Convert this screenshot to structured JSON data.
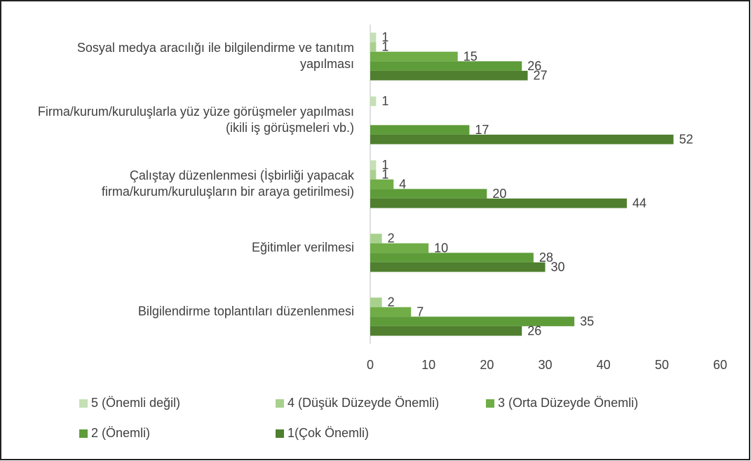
{
  "chart_data": {
    "type": "barh",
    "categories": [
      "Sosyal medya aracılığı ile bilgilendirme ve tanıtım yapılması",
      "Firma/kurum/kuruluşlarla yüz yüze görüşmeler yapılması (ikili iş görüşmeleri vb.)",
      "Çalıştay düzenlenmesi (İşbirliği yapacak firma/kurum/kuruluşların bir araya getirilmesi)",
      "Eğitimler verilmesi",
      "Bilgilendirme toplantıları düzenlenmesi"
    ],
    "series": [
      {
        "name": "5 (Önemli değil)",
        "color": "#c5e0b4",
        "values": [
          1,
          1,
          1,
          null,
          null
        ]
      },
      {
        "name": "4 (Düşük Düzeyde Önemli)",
        "color": "#a9d18e",
        "values": [
          1,
          null,
          1,
          2,
          2
        ]
      },
      {
        "name": "3 (Orta Düzeyde Önemli)",
        "color": "#70ad47",
        "values": [
          15,
          null,
          4,
          10,
          7
        ]
      },
      {
        "name": "2 (Önemli)",
        "color": "#5e9c3a",
        "values": [
          26,
          17,
          20,
          28,
          35
        ]
      },
      {
        "name": "1(Çok Önemli)",
        "color": "#4f7f2f",
        "values": [
          27,
          52,
          44,
          30,
          26
        ]
      }
    ],
    "xlim": [
      0,
      60
    ],
    "xticks": [
      0,
      10,
      20,
      30,
      40,
      50,
      60
    ],
    "grid": false
  }
}
